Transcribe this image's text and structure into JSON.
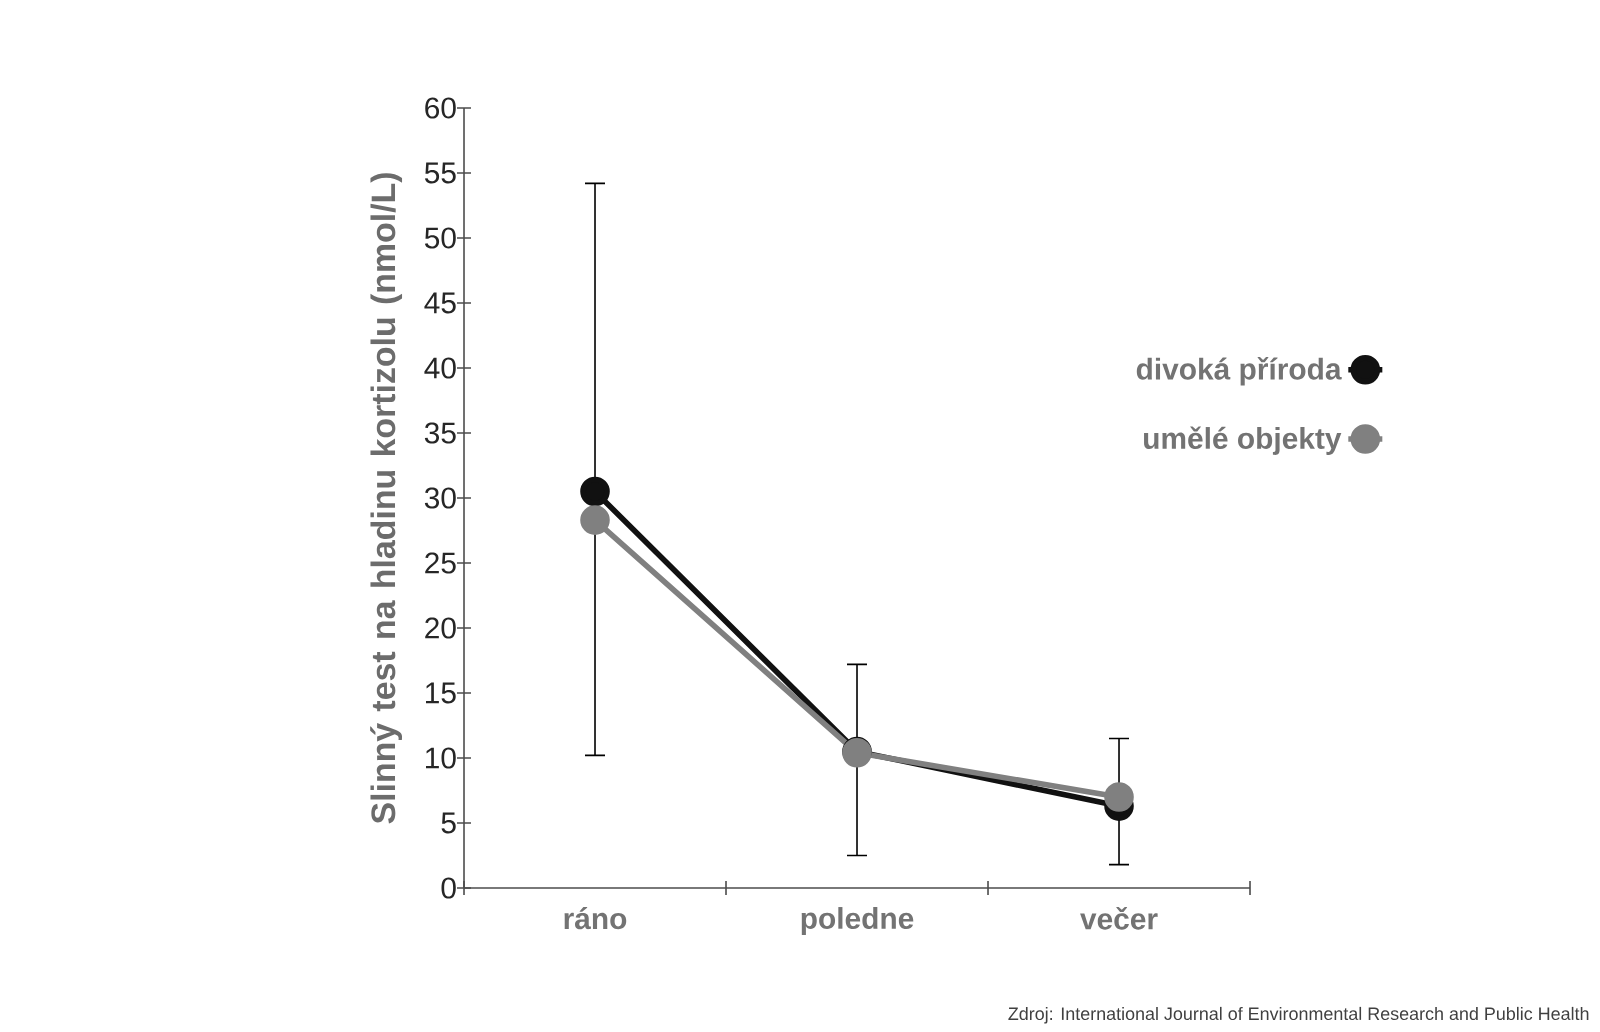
{
  "chart_data": {
    "type": "line",
    "ylabel": "Slinný test na hladinu kortizolu (nmol/L)",
    "categories": [
      "ráno",
      "poledne",
      "večer"
    ],
    "series": [
      {
        "name": "divoká příroda",
        "color": "#111111",
        "values": [
          30.5,
          10.5,
          6.3
        ],
        "errors": [
          [
            10.2,
            54.2
          ],
          [
            2.5,
            17.2
          ],
          [
            1.8,
            11.5
          ]
        ]
      },
      {
        "name": "umělé objekty",
        "color": "#808080",
        "values": [
          28.3,
          10.4,
          7.0
        ]
      }
    ],
    "ylim": [
      0,
      60
    ],
    "yticks": [
      0,
      5,
      10,
      15,
      20,
      25,
      30,
      35,
      40,
      45,
      50,
      55,
      60
    ],
    "marker": "circle",
    "legend": "right",
    "grid": false,
    "annotations": [
      "Zdroj: International Journal of Environmental Research and Public Health"
    ]
  }
}
